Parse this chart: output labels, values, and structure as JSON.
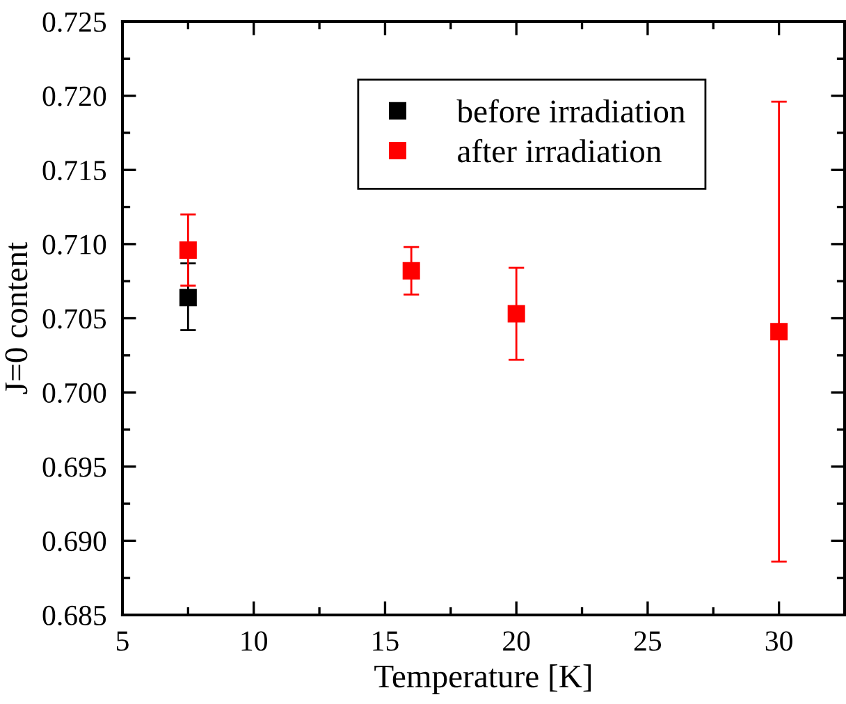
{
  "chart_data": {
    "type": "scatter",
    "xlabel": "Temperature [K]",
    "ylabel": "J=0 content",
    "xlim": [
      5,
      32.5
    ],
    "xticks": [
      5,
      10,
      15,
      20,
      25,
      30
    ],
    "ylim": [
      0.685,
      0.725
    ],
    "yticks": [
      {
        "value": 0.685,
        "label": "0.685"
      },
      {
        "value": 0.69,
        "label": "0.690"
      },
      {
        "value": 0.695,
        "label": "0.695"
      },
      {
        "value": 0.7,
        "label": "0.700"
      },
      {
        "value": 0.705,
        "label": "0.705"
      },
      {
        "value": 0.71,
        "label": "0.710"
      },
      {
        "value": 0.715,
        "label": "0.715"
      },
      {
        "value": 0.72,
        "label": "0.720"
      },
      {
        "value": 0.725,
        "label": "0.725"
      }
    ],
    "marker": "square",
    "grid": false,
    "legend": "top right",
    "series": [
      {
        "name": "before irradiation",
        "color": "#000000",
        "x": [
          7.5
        ],
        "values": [
          0.7064
        ],
        "errors": [
          [
            0.7042,
            0.7087
          ]
        ]
      },
      {
        "name": "after irradiation",
        "color": "#ff0000",
        "x": [
          7.5,
          16,
          20,
          30
        ],
        "values": [
          0.7096,
          0.7082,
          0.7053,
          0.7041
        ],
        "errors": [
          [
            0.7072,
            0.712
          ],
          [
            0.7066,
            0.7098
          ],
          [
            0.7022,
            0.7084
          ],
          [
            0.6886,
            0.7196
          ]
        ]
      }
    ]
  }
}
